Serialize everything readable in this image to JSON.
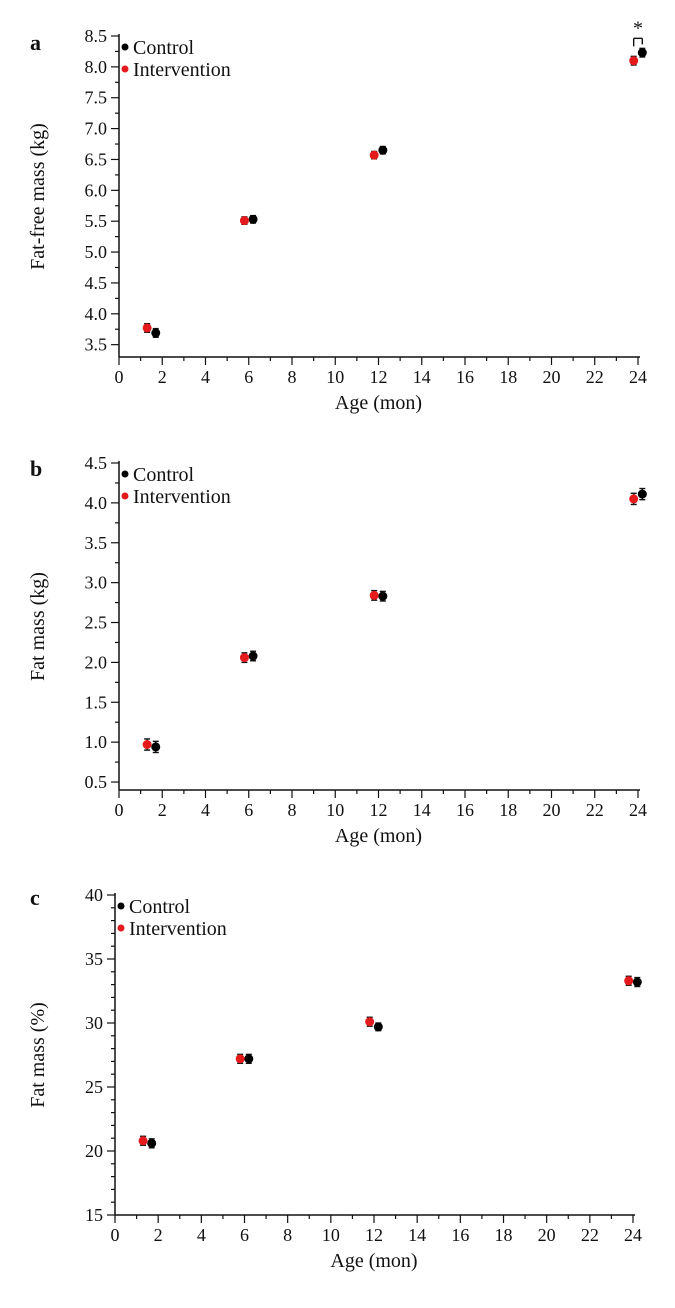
{
  "chart_data": [
    {
      "type": "scatter",
      "panel": "a",
      "xlabel": "Age (mon)",
      "ylabel": "Fat-free mass (kg)",
      "xlim": [
        0,
        24
      ],
      "ylim": [
        3.3,
        8.5
      ],
      "x_ticks": [
        "0",
        "2",
        "4",
        "6",
        "8",
        "10",
        "12",
        "14",
        "16",
        "18",
        "20",
        "22",
        "24"
      ],
      "y_ticks": [
        "3.5",
        "4.0",
        "4.5",
        "5.0",
        "5.5",
        "6.0",
        "6.5",
        "7.0",
        "7.5",
        "8.0",
        "8.5"
      ],
      "series": [
        {
          "name": "Control",
          "color": "#000000",
          "x": [
            1.7,
            6.2,
            12.2,
            24.2
          ],
          "y": [
            3.69,
            5.53,
            6.65,
            8.23
          ],
          "err": [
            0.07,
            0.06,
            0.06,
            0.07
          ]
        },
        {
          "name": "Intervention",
          "color": "#e41a1c",
          "x": [
            1.3,
            5.8,
            11.8,
            23.8
          ],
          "y": [
            3.77,
            5.51,
            6.57,
            8.1
          ],
          "err": [
            0.07,
            0.06,
            0.06,
            0.07
          ]
        }
      ],
      "annotation": {
        "text": "*",
        "between": [
          3
        ]
      }
    },
    {
      "type": "scatter",
      "panel": "b",
      "xlabel": "Age (mon)",
      "ylabel": "Fat mass (kg)",
      "xlim": [
        0,
        24
      ],
      "ylim": [
        0.4,
        4.5
      ],
      "x_ticks": [
        "0",
        "2",
        "4",
        "6",
        "8",
        "10",
        "12",
        "14",
        "16",
        "18",
        "20",
        "22",
        "24"
      ],
      "y_ticks": [
        "0.5",
        "1.0",
        "1.5",
        "2.0",
        "2.5",
        "3.0",
        "3.5",
        "4.0",
        "4.5"
      ],
      "series": [
        {
          "name": "Control",
          "color": "#000000",
          "x": [
            1.7,
            6.2,
            12.2,
            24.2
          ],
          "y": [
            0.94,
            2.08,
            2.83,
            4.11
          ],
          "err": [
            0.07,
            0.06,
            0.06,
            0.07
          ]
        },
        {
          "name": "Intervention",
          "color": "#e41a1c",
          "x": [
            1.3,
            5.8,
            11.8,
            23.8
          ],
          "y": [
            0.97,
            2.06,
            2.84,
            4.05
          ],
          "err": [
            0.07,
            0.06,
            0.06,
            0.07
          ]
        }
      ]
    },
    {
      "type": "scatter",
      "panel": "c",
      "xlabel": "Age (mon)",
      "ylabel": "Fat mass (%)",
      "xlim": [
        0,
        24
      ],
      "ylim": [
        15,
        40
      ],
      "x_ticks": [
        "0",
        "2",
        "4",
        "6",
        "8",
        "10",
        "12",
        "14",
        "16",
        "18",
        "20",
        "22",
        "24"
      ],
      "y_ticks": [
        "15",
        "20",
        "25",
        "30",
        "35",
        "40"
      ],
      "series": [
        {
          "name": "Control",
          "color": "#000000",
          "x": [
            1.7,
            6.2,
            12.2,
            24.2
          ],
          "y": [
            20.6,
            27.2,
            29.7,
            33.2
          ],
          "err": [
            0.35,
            0.35,
            0.3,
            0.35
          ]
        },
        {
          "name": "Intervention",
          "color": "#e41a1c",
          "x": [
            1.3,
            5.8,
            11.8,
            23.8
          ],
          "y": [
            20.8,
            27.2,
            30.1,
            33.3
          ],
          "err": [
            0.35,
            0.35,
            0.35,
            0.35
          ]
        }
      ]
    }
  ]
}
